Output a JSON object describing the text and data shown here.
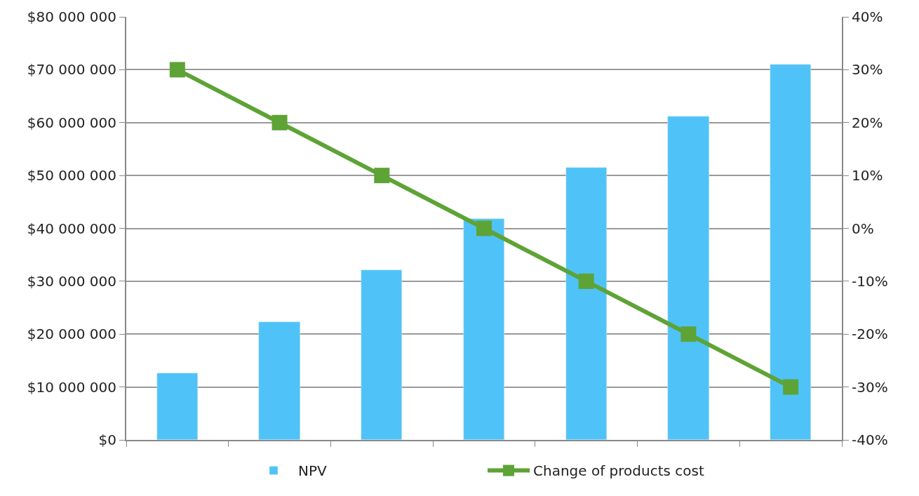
{
  "chart_data": {
    "type": "bar",
    "categories": [
      null,
      null,
      null,
      null,
      null,
      null,
      null
    ],
    "series": [
      {
        "name": "NPV",
        "color": "#4fc3f7",
        "values": [
          12600000,
          22300000,
          32100000,
          41800000,
          51500000,
          61200000,
          71000000
        ]
      },
      {
        "name": "Change of products cost",
        "type": "line",
        "axis": "y2",
        "color": "#5ea336",
        "marker": "square",
        "values": [
          30,
          20,
          10,
          0,
          -10,
          -20,
          -30
        ]
      }
    ],
    "ylim": [
      0,
      80000000
    ],
    "yticks": [
      {
        "value": 0,
        "label": "$0"
      },
      {
        "value": 10000000,
        "label": "$10 000 000"
      },
      {
        "value": 20000000,
        "label": "$20 000 000"
      },
      {
        "value": 30000000,
        "label": "$30 000 000"
      },
      {
        "value": 40000000,
        "label": "$40 000 000"
      },
      {
        "value": 50000000,
        "label": "$50 000 000"
      },
      {
        "value": 60000000,
        "label": "$60 000 000"
      },
      {
        "value": 70000000,
        "label": "$70 000 000"
      },
      {
        "value": 80000000,
        "label": "$80 000 000"
      }
    ],
    "y2lim": [
      -40,
      40
    ],
    "y2ticks": [
      {
        "value": -40,
        "label": "-40%"
      },
      {
        "value": -30,
        "label": "-30%"
      },
      {
        "value": -20,
        "label": "-20%"
      },
      {
        "value": -10,
        "label": "-10%"
      },
      {
        "value": 0,
        "label": "0%"
      },
      {
        "value": 10,
        "label": "10%"
      },
      {
        "value": 20,
        "label": "20%"
      },
      {
        "value": 30,
        "label": "30%"
      },
      {
        "value": 40,
        "label": "40%"
      }
    ],
    "grid": "y",
    "legend": "bottom",
    "line_style": "solid"
  }
}
